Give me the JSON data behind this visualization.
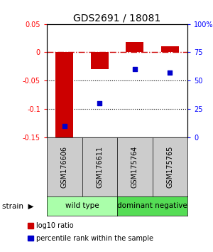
{
  "title": "GDS2691 / 18081",
  "samples": [
    "GSM176606",
    "GSM176611",
    "GSM175764",
    "GSM175765"
  ],
  "log10_ratio": [
    -0.155,
    -0.03,
    0.018,
    0.01
  ],
  "percentile_rank": [
    10,
    30,
    60,
    57
  ],
  "ylim_left": [
    -0.15,
    0.05
  ],
  "ylim_right": [
    0,
    100
  ],
  "yticks_left": [
    -0.15,
    -0.1,
    -0.05,
    0.0,
    0.05
  ],
  "yticks_right": [
    0,
    25,
    50,
    75,
    100
  ],
  "ytick_labels_left": [
    "-0.15",
    "-0.1",
    "-0.05",
    "0",
    "0.05"
  ],
  "ytick_labels_right": [
    "0",
    "25",
    "50",
    "75",
    "100%"
  ],
  "bar_color": "#cc0000",
  "scatter_color": "#0000cc",
  "zero_line_color": "#cc0000",
  "dotted_line_color": "#000000",
  "groups": [
    {
      "label": "wild type",
      "samples": [
        0,
        1
      ],
      "color": "#aaffaa"
    },
    {
      "label": "dominant negative",
      "samples": [
        2,
        3
      ],
      "color": "#55dd55"
    }
  ],
  "strain_label": "strain",
  "legend_red_label": "log10 ratio",
  "legend_blue_label": "percentile rank within the sample",
  "bar_width": 0.5
}
